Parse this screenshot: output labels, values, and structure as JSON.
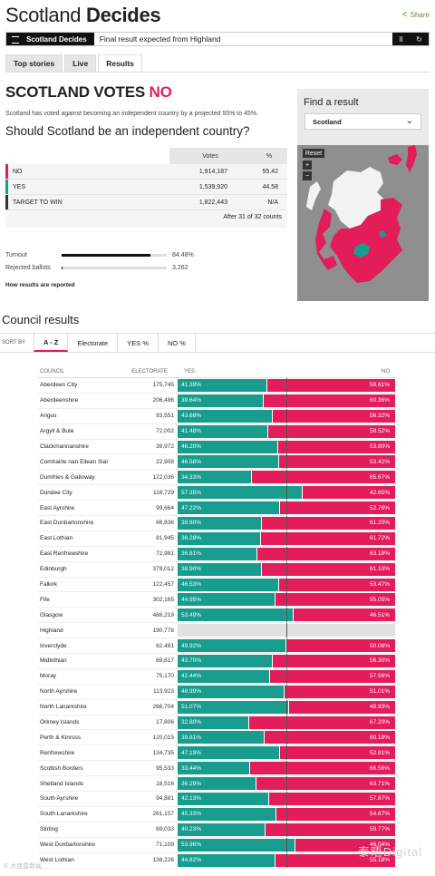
{
  "header": {
    "brand_light": "Scotland",
    "brand_bold": "Decides",
    "share_label": "Share",
    "share_icon": "share-icon"
  },
  "ticker": {
    "label": "Scotland Decides",
    "text": "Final result expected from Highland",
    "pause": "II",
    "refresh": "↻"
  },
  "tabs": [
    {
      "label": "Top stories",
      "active": false
    },
    {
      "label": "Live",
      "active": false
    },
    {
      "label": "Results",
      "active": true
    }
  ],
  "main": {
    "headline_prefix": "SCOTLAND VOTES ",
    "headline_result": "NO",
    "summary": "Scotland has voted against becoming an independent country by a projected 55% to 45%.",
    "question": "Should Scotland be an independent country?",
    "results_header": {
      "votes": "Votes",
      "pct": "%"
    },
    "results": [
      {
        "name": "NO",
        "votes": "1,914,187",
        "pct": "55.42",
        "color": "#e21d5a"
      },
      {
        "name": "YES",
        "votes": "1,539,920",
        "pct": "44.58",
        "color": "#179c8e"
      },
      {
        "name": "TARGET TO WIN",
        "votes": "1,822,443",
        "pct": "N/A",
        "color": "#333333"
      }
    ],
    "results_footer": "After 31 of 32 counts",
    "turnout_label": "Turnout",
    "turnout_value": "84.48%",
    "turnout_fraction": 0.8448,
    "rejected_label": "Rejected ballots",
    "rejected_value": "3,262",
    "rejected_fraction": 0.001,
    "how_reported": "How results are reported"
  },
  "finder": {
    "title": "Find a result",
    "selected": "Scotland",
    "chevron": "⌄",
    "reset": "Reset",
    "zoom_in": "+",
    "zoom_out": "−"
  },
  "councils": {
    "title": "Council results",
    "sort_label": "SORT BY",
    "sort_options": [
      "A - Z",
      "Electorate",
      "YES %",
      "NO %"
    ],
    "columns": {
      "council": "COUNCIL",
      "electorate": "ELECTORATE",
      "yes": "YES",
      "no": "NO"
    },
    "colors": {
      "yes": "#179c8e",
      "no": "#e21d5a",
      "pending": "#e1e1e1"
    },
    "rows": [
      {
        "name": "Aberdeen City",
        "electorate": "175,745",
        "yes": 41.39,
        "yes_label": "41.39%",
        "no_label": "58.61%"
      },
      {
        "name": "Aberdeenshire",
        "electorate": "206,486",
        "yes": 39.64,
        "yes_label": "39.64%",
        "no_label": "60.36%"
      },
      {
        "name": "Angus",
        "electorate": "93,551",
        "yes": 43.68,
        "yes_label": "43.68%",
        "no_label": "56.32%"
      },
      {
        "name": "Argyll & Bute",
        "electorate": "72,002",
        "yes": 41.48,
        "yes_label": "41.48%",
        "no_label": "58.52%"
      },
      {
        "name": "Clackmannanshire",
        "electorate": "39,972",
        "yes": 46.2,
        "yes_label": "46.20%",
        "no_label": "53.80%"
      },
      {
        "name": "Comhairle nan Eilean Siar",
        "electorate": "22,908",
        "yes": 46.58,
        "yes_label": "46.58%",
        "no_label": "53.42%"
      },
      {
        "name": "Dumfries & Galloway",
        "electorate": "122,036",
        "yes": 34.33,
        "yes_label": "34.33%",
        "no_label": "65.67%"
      },
      {
        "name": "Dundee City",
        "electorate": "118,729",
        "yes": 57.35,
        "yes_label": "57.35%",
        "no_label": "42.65%"
      },
      {
        "name": "East Ayrshire",
        "electorate": "99,664",
        "yes": 47.22,
        "yes_label": "47.22%",
        "no_label": "52.78%"
      },
      {
        "name": "East Dunbartonshire",
        "electorate": "86,836",
        "yes": 38.8,
        "yes_label": "38.80%",
        "no_label": "61.20%"
      },
      {
        "name": "East Lothian",
        "electorate": "81,945",
        "yes": 38.28,
        "yes_label": "38.28%",
        "no_label": "61.72%"
      },
      {
        "name": "East Renfrewshire",
        "electorate": "72,981",
        "yes": 36.81,
        "yes_label": "36.81%",
        "no_label": "63.19%"
      },
      {
        "name": "Edinburgh",
        "electorate": "378,012",
        "yes": 38.9,
        "yes_label": "38.90%",
        "no_label": "61.10%"
      },
      {
        "name": "Falkirk",
        "electorate": "122,457",
        "yes": 46.53,
        "yes_label": "46.53%",
        "no_label": "53.47%"
      },
      {
        "name": "Fife",
        "electorate": "302,165",
        "yes": 44.95,
        "yes_label": "44.95%",
        "no_label": "55.05%"
      },
      {
        "name": "Glasgow",
        "electorate": "486,219",
        "yes": 53.49,
        "yes_label": "53.49%",
        "no_label": "46.51%"
      },
      {
        "name": "Highland",
        "electorate": "190,778",
        "yes": null,
        "yes_label": "",
        "no_label": ""
      },
      {
        "name": "Inverclyde",
        "electorate": "62,481",
        "yes": 49.92,
        "yes_label": "49.92%",
        "no_label": "50.08%"
      },
      {
        "name": "Midlothian",
        "electorate": "69,617",
        "yes": 43.7,
        "yes_label": "43.70%",
        "no_label": "56.30%"
      },
      {
        "name": "Moray",
        "electorate": "75,170",
        "yes": 42.44,
        "yes_label": "42.44%",
        "no_label": "57.56%"
      },
      {
        "name": "North Ayrshire",
        "electorate": "113,923",
        "yes": 48.99,
        "yes_label": "48.99%",
        "no_label": "51.01%"
      },
      {
        "name": "North Lanarkshire",
        "electorate": "268,704",
        "yes": 51.07,
        "yes_label": "51.07%",
        "no_label": "48.93%"
      },
      {
        "name": "Orkney Islands",
        "electorate": "17,806",
        "yes": 32.8,
        "yes_label": "32.80%",
        "no_label": "67.20%"
      },
      {
        "name": "Perth & Kinross",
        "electorate": "120,015",
        "yes": 39.81,
        "yes_label": "39.81%",
        "no_label": "60.19%"
      },
      {
        "name": "Renfrewshire",
        "electorate": "134,735",
        "yes": 47.19,
        "yes_label": "47.19%",
        "no_label": "52.81%"
      },
      {
        "name": "Scottish Borders",
        "electorate": "95,533",
        "yes": 33.44,
        "yes_label": "33.44%",
        "no_label": "66.56%"
      },
      {
        "name": "Shetland Islands",
        "electorate": "18,516",
        "yes": 36.29,
        "yes_label": "36.29%",
        "no_label": "63.71%"
      },
      {
        "name": "South Ayrshire",
        "electorate": "94,881",
        "yes": 42.13,
        "yes_label": "42.13%",
        "no_label": "57.87%"
      },
      {
        "name": "South Lanarkshire",
        "electorate": "261,157",
        "yes": 45.33,
        "yes_label": "45.33%",
        "no_label": "54.67%"
      },
      {
        "name": "Stirling",
        "electorate": "69,033",
        "yes": 40.23,
        "yes_label": "40.23%",
        "no_label": "59.77%"
      },
      {
        "name": "West Dunbartonshire",
        "electorate": "71,109",
        "yes": 53.96,
        "yes_label": "53.96%",
        "no_label": "46.04%"
      },
      {
        "name": "West Lothian",
        "electorate": "138,226",
        "yes": 44.82,
        "yes_label": "44.82%",
        "no_label": "55.18%"
      }
    ]
  },
  "watermarks": {
    "left": "© 大连壹新闻",
    "right": "泰晤Digital"
  }
}
